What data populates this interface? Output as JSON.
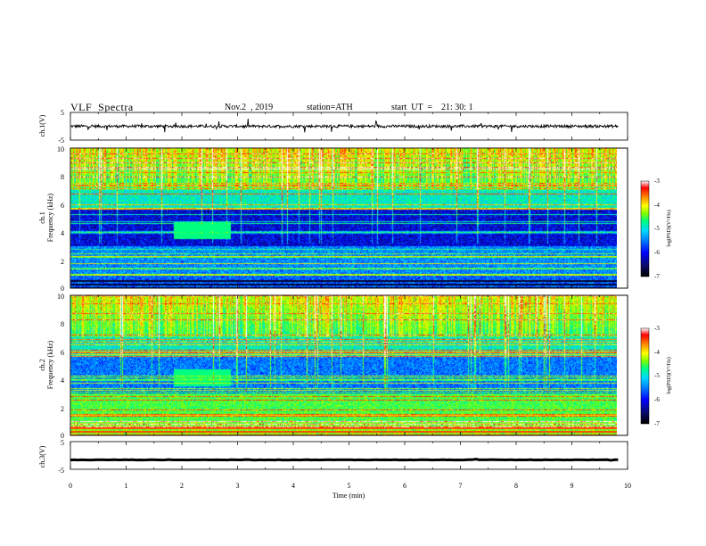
{
  "header": {
    "title": "VLF  Spectra",
    "date": "Nov.2  , 2019",
    "station": "station=ATH",
    "start_ut": "start  UT  =    21: 30: 1"
  },
  "colors": {
    "spectrogram_scale": [
      "#000000",
      "#0b0b6e",
      "#0000ff",
      "#0080ff",
      "#00d8ff",
      "#00ff80",
      "#80ff00",
      "#ffff00",
      "#ff8000",
      "#ff0000",
      "#ffffff"
    ]
  },
  "chart_data": [
    {
      "type": "line",
      "panel": "ch1-waveform",
      "ylabel": "ch.1(V)",
      "ylim": [
        -5,
        5
      ],
      "yticks": [
        "5",
        "-5"
      ],
      "series": [
        {
          "approx_level": 0.0,
          "noise_amplitude": 1.0
        }
      ]
    },
    {
      "type": "heatmap",
      "panel": "ch1-spectrogram",
      "ylabel_line1": "ch.1",
      "ylabel_line2": "Frequency  (kHz)",
      "ylim": [
        0,
        10
      ],
      "yticks": [
        "0",
        "2",
        "4",
        "6",
        "8",
        "10"
      ],
      "colorbar": {
        "label": "log(PSD)(V²/Hz)",
        "range": [
          -7,
          -3
        ],
        "ticks": [
          "-3",
          "-4",
          "-5",
          "-6",
          "-7"
        ]
      }
    },
    {
      "type": "heatmap",
      "panel": "ch2-spectrogram",
      "ylabel_line1": "ch.2",
      "ylabel_line2": "Frequency  (kHz)",
      "ylim": [
        0,
        10
      ],
      "yticks": [
        "0",
        "2",
        "4",
        "6",
        "8",
        "10"
      ],
      "colorbar": {
        "label": "log(PSD)(V²/Hz)",
        "range": [
          -7,
          -3
        ],
        "ticks": [
          "-3",
          "-4",
          "-5",
          "-6",
          "-7"
        ]
      }
    },
    {
      "type": "line",
      "panel": "ch3-waveform",
      "ylabel": "ch.3(V)",
      "ylim": [
        -5,
        5
      ],
      "yticks": [
        "5",
        "-5"
      ],
      "series": [
        {
          "approx_level": -1.6,
          "noise_amplitude": 0.1
        }
      ]
    }
  ],
  "xaxis": {
    "label": "Time  (min)",
    "xlim": [
      0,
      10
    ],
    "ticks": [
      "0",
      "1",
      "2",
      "3",
      "4",
      "5",
      "6",
      "7",
      "8",
      "9",
      "10"
    ],
    "data_end": 9.83
  }
}
